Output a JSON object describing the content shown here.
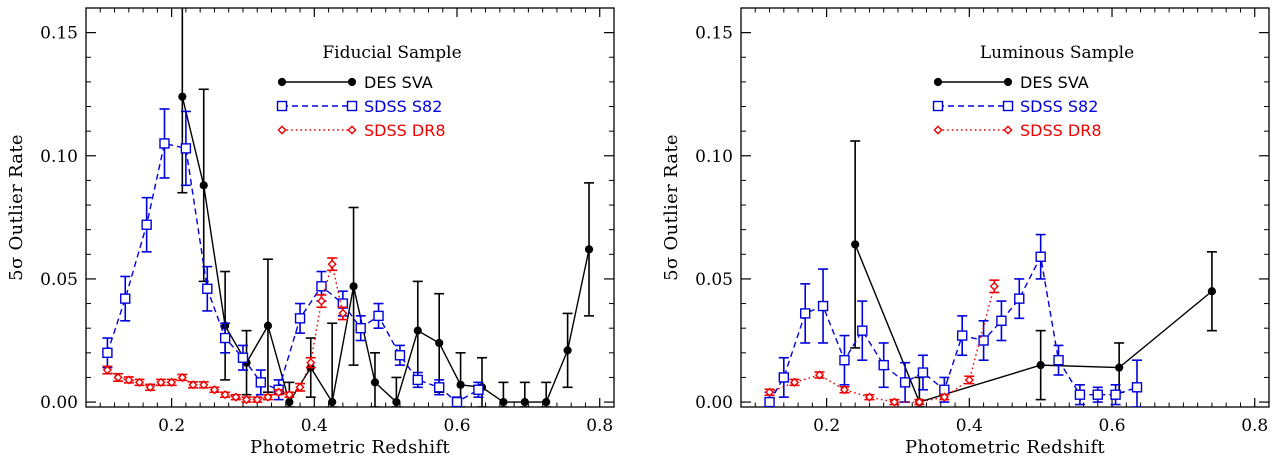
{
  "colors": {
    "des": "#000000",
    "s82": "#0000dd",
    "dr8": "#ee0000"
  },
  "chart_data": [
    {
      "type": "line",
      "title": "Fiducial Sample",
      "xlabel": "Photometric Redshift",
      "ylabel": "5σ Outlier Rate",
      "xlim": [
        0.08,
        0.82
      ],
      "ylim": [
        -0.002,
        0.16
      ],
      "xticks": [
        0.2,
        0.4,
        0.6,
        0.8
      ],
      "xtick_labels": [
        "0.2",
        "0.4",
        "0.6",
        "0.8"
      ],
      "yticks": [
        0.0,
        0.05,
        0.1,
        0.15
      ],
      "ytick_labels": [
        "0.00",
        "0.05",
        "0.10",
        "0.15"
      ],
      "legend": [
        "DES SVA",
        "SDSS S82",
        "SDSS DR8"
      ],
      "series": [
        {
          "name": "DES SVA",
          "style": "solid",
          "marker": "dot",
          "color": "#000000",
          "x": [
            0.215,
            0.245,
            0.275,
            0.305,
            0.335,
            0.365,
            0.395,
            0.425,
            0.455,
            0.485,
            0.515,
            0.545,
            0.575,
            0.605,
            0.635,
            0.665,
            0.695,
            0.725,
            0.755,
            0.785
          ],
          "y": [
            0.124,
            0.088,
            0.031,
            0.016,
            0.031,
            0.0,
            0.014,
            0.0,
            0.047,
            0.008,
            0.0,
            0.029,
            0.024,
            0.007,
            0.006,
            0.0,
            0.0,
            0.0,
            0.021,
            0.062
          ],
          "err": [
            0.039,
            0.039,
            0.022,
            0.013,
            0.027,
            0.008,
            0.012,
            0.032,
            0.032,
            0.012,
            0.01,
            0.02,
            0.02,
            0.013,
            0.012,
            0.008,
            0.008,
            0.008,
            0.015,
            0.027
          ]
        },
        {
          "name": "SDSS S82",
          "style": "dashed",
          "marker": "square",
          "color": "#0000dd",
          "x": [
            0.11,
            0.135,
            0.165,
            0.19,
            0.22,
            0.25,
            0.275,
            0.3,
            0.325,
            0.35,
            0.38,
            0.41,
            0.44,
            0.465,
            0.49,
            0.52,
            0.545,
            0.575,
            0.6,
            0.63
          ],
          "y": [
            0.02,
            0.042,
            0.072,
            0.105,
            0.103,
            0.046,
            0.026,
            0.018,
            0.008,
            0.005,
            0.034,
            0.047,
            0.04,
            0.03,
            0.035,
            0.019,
            0.009,
            0.006,
            0.0,
            0.005
          ],
          "err": [
            0.006,
            0.009,
            0.011,
            0.014,
            0.015,
            0.009,
            0.006,
            0.005,
            0.005,
            0.004,
            0.006,
            0.006,
            0.005,
            0.005,
            0.005,
            0.004,
            0.003,
            0.003,
            0.002,
            0.003
          ]
        },
        {
          "name": "SDSS DR8",
          "style": "dotted",
          "marker": "diamond",
          "color": "#ee0000",
          "x": [
            0.11,
            0.125,
            0.14,
            0.155,
            0.17,
            0.185,
            0.2,
            0.215,
            0.23,
            0.245,
            0.26,
            0.275,
            0.29,
            0.305,
            0.32,
            0.335,
            0.35,
            0.365,
            0.38,
            0.395,
            0.41,
            0.425,
            0.44
          ],
          "y": [
            0.013,
            0.01,
            0.009,
            0.008,
            0.006,
            0.008,
            0.008,
            0.01,
            0.007,
            0.007,
            0.005,
            0.003,
            0.002,
            0.001,
            0.001,
            0.002,
            0.004,
            0.003,
            0.006,
            0.016,
            0.041,
            0.056,
            0.036
          ],
          "err": [
            0.0015,
            0.0015,
            0.0012,
            0.0012,
            0.0012,
            0.0012,
            0.0012,
            0.0012,
            0.0012,
            0.0012,
            0.001,
            0.001,
            0.001,
            0.001,
            0.001,
            0.001,
            0.001,
            0.001,
            0.0015,
            0.002,
            0.0025,
            0.0025,
            0.0025
          ]
        }
      ]
    },
    {
      "type": "line",
      "title": "Luminous Sample",
      "xlabel": "Photometric Redshift",
      "ylabel": "5σ Outlier Rate",
      "xlim": [
        0.08,
        0.82
      ],
      "ylim": [
        -0.002,
        0.16
      ],
      "xticks": [
        0.2,
        0.4,
        0.6,
        0.8
      ],
      "xtick_labels": [
        "0.2",
        "0.4",
        "0.6",
        "0.8"
      ],
      "yticks": [
        0.0,
        0.05,
        0.1,
        0.15
      ],
      "ytick_labels": [
        "0.00",
        "0.05",
        "0.10",
        "0.15"
      ],
      "legend": [
        "DES SVA",
        "SDSS S82",
        "SDSS DR8"
      ],
      "series": [
        {
          "name": "DES SVA",
          "style": "solid",
          "marker": "dot",
          "color": "#000000",
          "x": [
            0.24,
            0.33,
            0.5,
            0.61,
            0.74
          ],
          "y": [
            0.064,
            0.0,
            0.015,
            0.014,
            0.045
          ],
          "err": [
            0.042,
            0.01,
            0.014,
            0.01,
            0.016
          ]
        },
        {
          "name": "SDSS S82",
          "style": "dashed",
          "marker": "square",
          "color": "#0000dd",
          "x": [
            0.12,
            0.14,
            0.17,
            0.195,
            0.225,
            0.25,
            0.28,
            0.31,
            0.335,
            0.365,
            0.39,
            0.42,
            0.445,
            0.47,
            0.5,
            0.525,
            0.555,
            0.58,
            0.605,
            0.635
          ],
          "y": [
            0.0,
            0.01,
            0.036,
            0.039,
            0.017,
            0.029,
            0.015,
            0.008,
            0.012,
            0.005,
            0.027,
            0.025,
            0.033,
            0.042,
            0.059,
            0.017,
            0.003,
            0.003,
            0.003,
            0.006
          ],
          "err": [
            0.004,
            0.008,
            0.012,
            0.015,
            0.01,
            0.012,
            0.009,
            0.008,
            0.007,
            0.005,
            0.008,
            0.008,
            0.008,
            0.008,
            0.009,
            0.006,
            0.004,
            0.003,
            0.004,
            0.011
          ]
        },
        {
          "name": "SDSS DR8",
          "style": "dotted",
          "marker": "diamond",
          "color": "#ee0000",
          "x": [
            0.12,
            0.155,
            0.19,
            0.225,
            0.26,
            0.295,
            0.33,
            0.365,
            0.4,
            0.435
          ],
          "y": [
            0.004,
            0.008,
            0.011,
            0.005,
            0.002,
            0.0,
            0.0,
            0.002,
            0.009,
            0.047
          ],
          "err": [
            0.0012,
            0.0012,
            0.0012,
            0.0012,
            0.001,
            0.001,
            0.001,
            0.001,
            0.0015,
            0.0025
          ]
        }
      ]
    }
  ]
}
